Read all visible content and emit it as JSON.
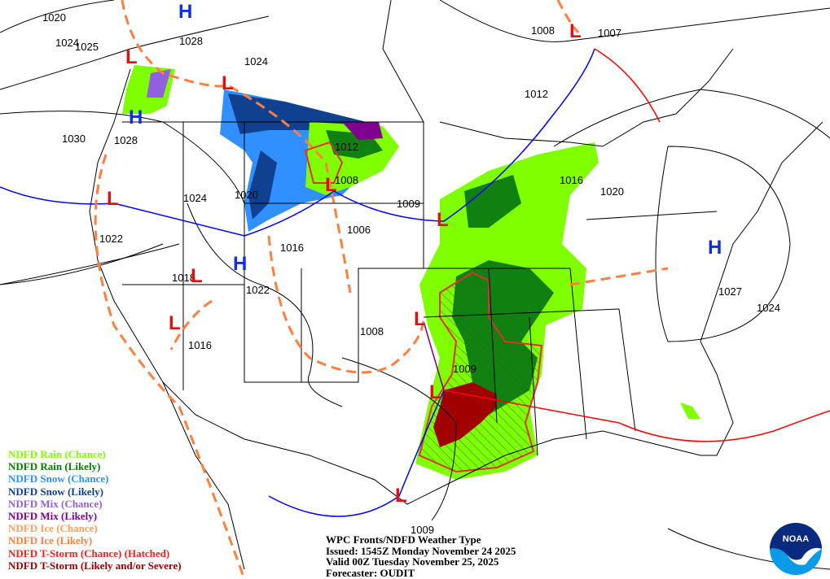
{
  "map": {
    "pressure_labels": [
      {
        "text": "1020",
        "lon_lat_hint": "NE Pacific"
      },
      {
        "text": "1024"
      },
      {
        "text": "1025"
      },
      {
        "text": "1028"
      },
      {
        "text": "1024"
      },
      {
        "text": "1030"
      },
      {
        "text": "1028"
      },
      {
        "text": "1024"
      },
      {
        "text": "1020"
      },
      {
        "text": "1012"
      },
      {
        "text": "1008"
      },
      {
        "text": "1009"
      },
      {
        "text": "1006"
      },
      {
        "text": "1016"
      },
      {
        "text": "1022"
      },
      {
        "text": "1018"
      },
      {
        "text": "1022"
      },
      {
        "text": "1016"
      },
      {
        "text": "1008"
      },
      {
        "text": "1009"
      },
      {
        "text": "1016"
      },
      {
        "text": "1020"
      },
      {
        "text": "1027"
      },
      {
        "text": "1024"
      },
      {
        "text": "1008"
      },
      {
        "text": "1007"
      },
      {
        "text": "1012"
      },
      {
        "text": "1009"
      }
    ],
    "high_symbol": "H",
    "low_symbol": "L",
    "colors": {
      "high": "#1030e0",
      "low": "#e01010",
      "cold_front": "#0000ff",
      "warm_front": "#ff0000",
      "trough": "#ff8040"
    }
  },
  "legend": [
    {
      "label": "NDFD Rain (Chance)",
      "color": "#80ff00"
    },
    {
      "label": "NDFD Rain (Likely)",
      "color": "#008000"
    },
    {
      "label": "NDFD Snow (Chance)",
      "color": "#3090ff"
    },
    {
      "label": "NDFD Snow (Likely)",
      "color": "#104090"
    },
    {
      "label": "NDFD Mix (Chance)",
      "color": "#9060e0"
    },
    {
      "label": "NDFD Mix (Likely)",
      "color": "#800090"
    },
    {
      "label": "NDFD Ice (Chance)",
      "color": "#ffa060"
    },
    {
      "label": "NDFD Ice (Likely)",
      "color": "#ff8040"
    },
    {
      "label": "NDFD T-Storm (Chance) (Hatched)",
      "color": "#ff2020"
    },
    {
      "label": "NDFD T-Storm (Likely and/or Severe)",
      "color": "#a00000"
    }
  ],
  "caption": {
    "title": "WPC Fronts/NDFD Weather Type",
    "issued": "Issued: 1545Z Monday November 24 2025",
    "valid": "Valid 00Z Tuesday November 25, 2025",
    "forecaster": "Forecaster: OUDIT"
  },
  "logo": {
    "text": "NOAA"
  }
}
